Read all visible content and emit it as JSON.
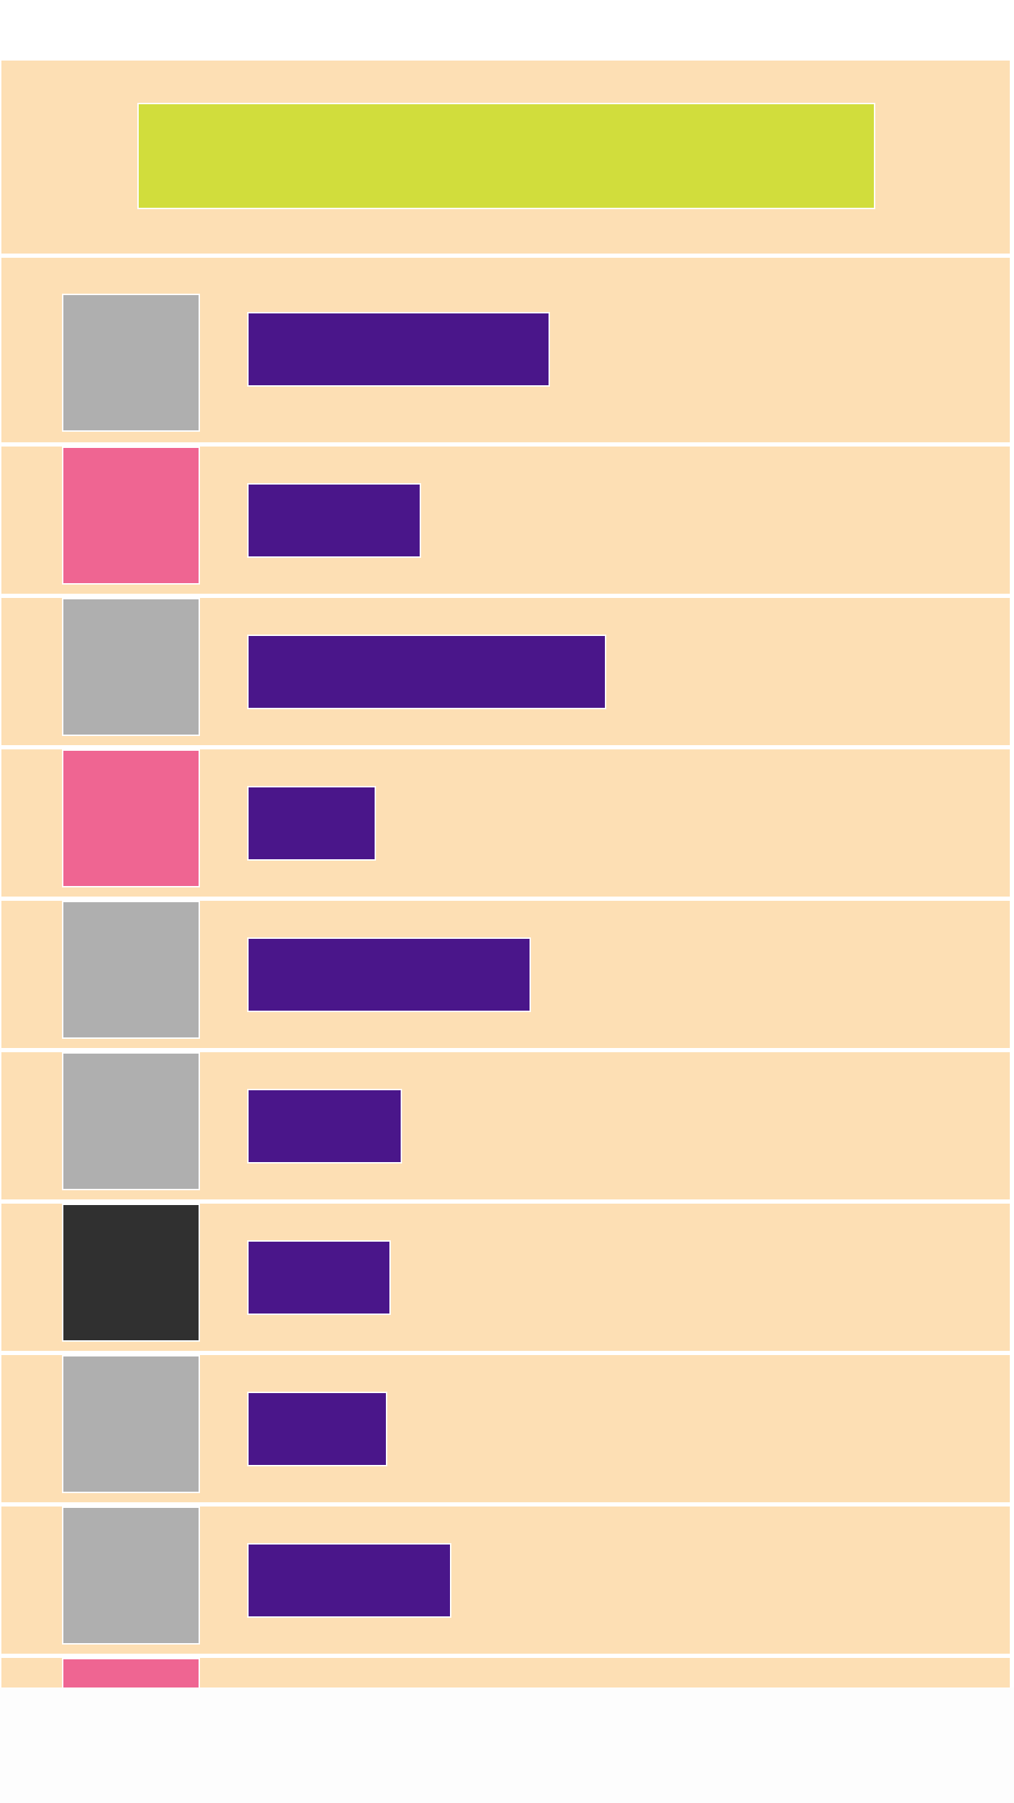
{
  "colors": {
    "page_background": "#ffffff",
    "panel": "#fddfb4",
    "header_banner": "#d1dd3c",
    "label_bar": "#4a168a",
    "divider": "#ffffff"
  },
  "header": {
    "banner_color": "#d1dd3c"
  },
  "list": {
    "items": [
      {
        "thumbnail_color": "#afafaf",
        "label_color": "#4a168a",
        "label_length": 0.8
      },
      {
        "thumbnail_color": "#ef6592",
        "label_color": "#4a168a",
        "label_length": 0.46
      },
      {
        "thumbnail_color": "#afafaf",
        "label_color": "#4a168a",
        "label_length": 0.95
      },
      {
        "thumbnail_color": "#ef6592",
        "label_color": "#4a168a",
        "label_length": 0.34
      },
      {
        "thumbnail_color": "#afafaf",
        "label_color": "#4a168a",
        "label_length": 0.75
      },
      {
        "thumbnail_color": "#afafaf",
        "label_color": "#4a168a",
        "label_length": 0.41
      },
      {
        "thumbnail_color": "#303030",
        "label_color": "#4a168a",
        "label_length": 0.38
      },
      {
        "thumbnail_color": "#afafaf",
        "label_color": "#4a168a",
        "label_length": 0.37
      },
      {
        "thumbnail_color": "#afafaf",
        "label_color": "#4a168a",
        "label_length": 0.54
      },
      {
        "thumbnail_color": "#ef6592",
        "label_color": "#4a168a",
        "label_length": 0
      }
    ]
  }
}
